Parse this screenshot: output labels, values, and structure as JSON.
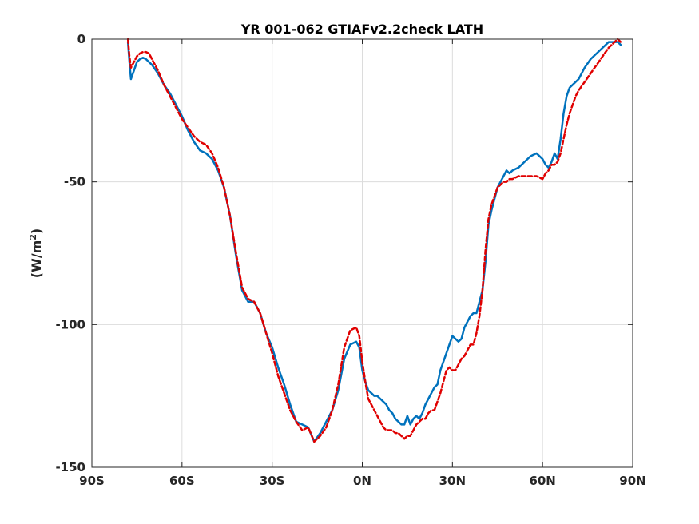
{
  "chart_data": {
    "type": "line",
    "title": "YR 001-062 GTIAFv2.2check LATH",
    "xlabel": "",
    "ylabel": "(W/m",
    "ylabel_superscript": "2",
    "ylabel_suffix": ")",
    "xlim": [
      -90,
      90
    ],
    "ylim": [
      -150,
      0
    ],
    "x_ticks": [
      -90,
      -60,
      -30,
      0,
      30,
      60,
      90
    ],
    "x_tick_labels": [
      "90S",
      "60S",
      "30S",
      "0N",
      "30N",
      "60N",
      "90N"
    ],
    "y_ticks": [
      -150,
      -100,
      -50,
      0
    ],
    "y_tick_labels": [
      "-150",
      "-100",
      "-50",
      "0"
    ],
    "grid": true,
    "legend": "none",
    "series": [
      {
        "color": "#0072BD",
        "style": "solid",
        "x": [
          -78,
          -77.5,
          -77,
          -76,
          -75,
          -74,
          -73,
          -72,
          -71,
          -70,
          -68,
          -66,
          -64,
          -62,
          -60,
          -58,
          -56,
          -54,
          -52,
          -50,
          -48,
          -46,
          -44,
          -42,
          -40,
          -38,
          -36,
          -34,
          -32,
          -30,
          -28,
          -26,
          -24,
          -22,
          -20,
          -18,
          -16,
          -14,
          -12,
          -10,
          -8,
          -6,
          -4,
          -2,
          -1,
          0,
          1,
          2,
          3,
          4,
          5,
          6,
          7,
          8,
          9,
          10,
          11,
          12,
          13,
          14,
          15,
          16,
          17,
          18,
          19,
          20,
          21,
          22,
          23,
          24,
          25,
          26,
          27,
          28,
          29,
          30,
          31,
          32,
          33,
          34,
          35,
          36,
          37,
          38,
          39,
          40,
          41,
          42,
          43,
          44,
          45,
          46,
          47,
          48,
          49,
          50,
          52,
          54,
          56,
          58,
          60,
          61,
          62,
          63,
          64,
          65,
          66,
          67,
          68,
          69,
          70,
          71,
          72,
          74,
          76,
          78,
          80,
          82,
          84,
          85,
          86
        ],
        "y": [
          -1,
          -8,
          -14,
          -11,
          -8,
          -7,
          -6.5,
          -7,
          -8,
          -9,
          -12,
          -16,
          -19,
          -23,
          -27,
          -32,
          -36,
          -39,
          -40,
          -42,
          -46,
          -52,
          -62,
          -76,
          -88,
          -92,
          -92,
          -96,
          -103,
          -108,
          -115,
          -121,
          -128,
          -134,
          -135,
          -136,
          -141,
          -138,
          -134,
          -130,
          -123,
          -112,
          -107,
          -106,
          -108,
          -116,
          -120,
          -123,
          -124,
          -125,
          -125,
          -126,
          -127,
          -128,
          -130,
          -131,
          -133,
          -134,
          -135,
          -135,
          -132,
          -135,
          -133,
          -132,
          -133,
          -131,
          -128,
          -126,
          -124,
          -122,
          -121,
          -116,
          -113,
          -110,
          -107,
          -104,
          -105,
          -106,
          -105,
          -101,
          -99,
          -97,
          -96,
          -96,
          -92,
          -88,
          -78,
          -65,
          -60,
          -56,
          -52,
          -50,
          -48,
          -46,
          -47,
          -46,
          -45,
          -43,
          -41,
          -40,
          -42,
          -44,
          -45,
          -43,
          -40,
          -42,
          -35,
          -26,
          -20,
          -17,
          -16,
          -15,
          -14,
          -10,
          -7,
          -5,
          -3,
          -1,
          -1,
          -1,
          -2
        ]
      },
      {
        "color": "#E00000",
        "style": "dashed",
        "x": [
          -78,
          -77.5,
          -77,
          -76,
          -75,
          -74,
          -73,
          -72,
          -71,
          -70,
          -68,
          -66,
          -64,
          -62,
          -60,
          -58,
          -56,
          -54,
          -52,
          -50,
          -48,
          -46,
          -44,
          -42,
          -40,
          -38,
          -36,
          -34,
          -32,
          -30,
          -28,
          -26,
          -24,
          -22,
          -20,
          -18,
          -16,
          -14,
          -12,
          -10,
          -8,
          -6,
          -4,
          -2,
          -1,
          0,
          1,
          2,
          3,
          4,
          5,
          6,
          7,
          8,
          9,
          10,
          11,
          12,
          13,
          14,
          15,
          16,
          17,
          18,
          19,
          20,
          21,
          22,
          23,
          24,
          25,
          26,
          27,
          28,
          29,
          30,
          31,
          32,
          33,
          34,
          35,
          36,
          37,
          38,
          39,
          40,
          41,
          42,
          43,
          44,
          45,
          46,
          47,
          48,
          49,
          50,
          52,
          54,
          56,
          58,
          60,
          61,
          62,
          63,
          64,
          65,
          66,
          67,
          68,
          69,
          70,
          71,
          72,
          74,
          76,
          78,
          80,
          82,
          84,
          85,
          86
        ],
        "y": [
          0,
          -6,
          -10,
          -8,
          -6,
          -5,
          -4.5,
          -4.5,
          -5,
          -7,
          -11,
          -16,
          -20,
          -24,
          -28,
          -31,
          -34,
          -36,
          -37,
          -40,
          -45,
          -52,
          -62,
          -75,
          -87,
          -91,
          -92,
          -96,
          -103,
          -110,
          -118,
          -124,
          -130,
          -134,
          -137,
          -136,
          -141,
          -139,
          -136,
          -130,
          -121,
          -108,
          -102,
          -101,
          -104,
          -113,
          -120,
          -126,
          -128,
          -130,
          -132,
          -134,
          -136,
          -137,
          -137,
          -137,
          -138,
          -138,
          -139,
          -140,
          -139,
          -139,
          -137,
          -135,
          -134,
          -133,
          -133,
          -131,
          -130,
          -130,
          -127,
          -124,
          -120,
          -116,
          -115,
          -116,
          -116,
          -114,
          -112,
          -111,
          -109,
          -107,
          -107,
          -103,
          -97,
          -88,
          -74,
          -63,
          -58,
          -55,
          -52,
          -51,
          -50,
          -50,
          -49,
          -49,
          -48,
          -48,
          -48,
          -48,
          -49,
          -47,
          -46,
          -44,
          -44,
          -43,
          -40,
          -35,
          -30,
          -26,
          -23,
          -20,
          -18,
          -15,
          -12,
          -9,
          -6,
          -3,
          -1,
          0,
          -1
        ]
      }
    ]
  }
}
